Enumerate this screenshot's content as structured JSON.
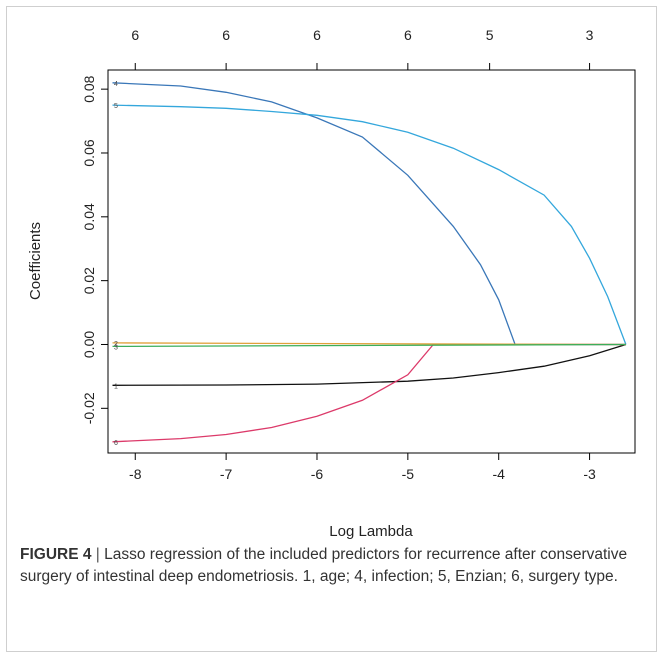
{
  "chart_data": {
    "type": "line",
    "title": "",
    "xlabel": "Log Lambda",
    "ylabel": "Coefficients",
    "xlim": [
      -8.3,
      -2.5
    ],
    "ylim": [
      -0.034,
      0.086
    ],
    "x_ticks": [
      -8,
      -7,
      -6,
      -5,
      -4,
      -3
    ],
    "y_ticks": [
      -0.02,
      0.0,
      0.02,
      0.04,
      0.06,
      0.08
    ],
    "x_tick_labels": [
      "-8",
      "-7",
      "-6",
      "-5",
      "-4",
      "-3"
    ],
    "y_tick_labels": [
      "-0.02",
      "0.00",
      "0.02",
      "0.04",
      "0.06",
      "0.08"
    ],
    "top_axis": {
      "x": [
        -8,
        -7,
        -6,
        -5,
        -4.1,
        -3
      ],
      "labels": [
        "6",
        "6",
        "6",
        "6",
        "5",
        "3"
      ]
    },
    "grid": false,
    "series": [
      {
        "label": "4",
        "color": "#3a77b8",
        "x": [
          -8.25,
          -7.5,
          -7,
          -6.5,
          -6,
          -5.5,
          -5,
          -4.5,
          -4.2,
          -4,
          -3.82,
          -3.5,
          -3,
          -2.6
        ],
        "y": [
          0.082,
          0.081,
          0.079,
          0.076,
          0.071,
          0.065,
          0.053,
          0.037,
          0.025,
          0.014,
          0.0,
          0.0,
          0.0,
          0.0
        ]
      },
      {
        "label": "5",
        "color": "#34a7dc",
        "x": [
          -8.25,
          -7.5,
          -7,
          -6.5,
          -6,
          -5.5,
          -5,
          -4.5,
          -4,
          -3.5,
          -3.2,
          -3,
          -2.8,
          -2.6
        ],
        "y": [
          0.075,
          0.0745,
          0.074,
          0.073,
          0.0718,
          0.0698,
          0.0665,
          0.0615,
          0.0548,
          0.0468,
          0.037,
          0.027,
          0.015,
          0.0
        ]
      },
      {
        "label": "1",
        "color": "#111111",
        "x": [
          -8.25,
          -7,
          -6,
          -5,
          -4.5,
          -4,
          -3.5,
          -3,
          -2.6
        ],
        "y": [
          -0.0128,
          -0.0127,
          -0.0124,
          -0.0115,
          -0.0105,
          -0.0088,
          -0.0068,
          -0.0035,
          0.0
        ]
      },
      {
        "label": "6",
        "color": "#dc3a6a",
        "x": [
          -8.25,
          -7.5,
          -7,
          -6.5,
          -6,
          -5.5,
          -5,
          -4.72,
          -4,
          -3,
          -2.6
        ],
        "y": [
          -0.0305,
          -0.0295,
          -0.0282,
          -0.026,
          -0.0225,
          -0.0175,
          -0.0095,
          0.0,
          0.0,
          0.0,
          0.0
        ]
      },
      {
        "label": "2",
        "color": "#e0a13a",
        "x": [
          -8.25,
          -2.6
        ],
        "y": [
          0.0005,
          0.0
        ]
      },
      {
        "label": "3",
        "color": "#3cae5a",
        "x": [
          -8.25,
          -2.6
        ],
        "y": [
          -0.0006,
          0.0
        ]
      }
    ]
  },
  "caption": {
    "figure_label": "FIGURE 4",
    "separator": "|",
    "text": "Lasso regression of the included predictors for recurrence after conservative surgery of intestinal deep endometriosis. 1, age; 4, infection; 5, Enzian; 6, surgery type."
  }
}
